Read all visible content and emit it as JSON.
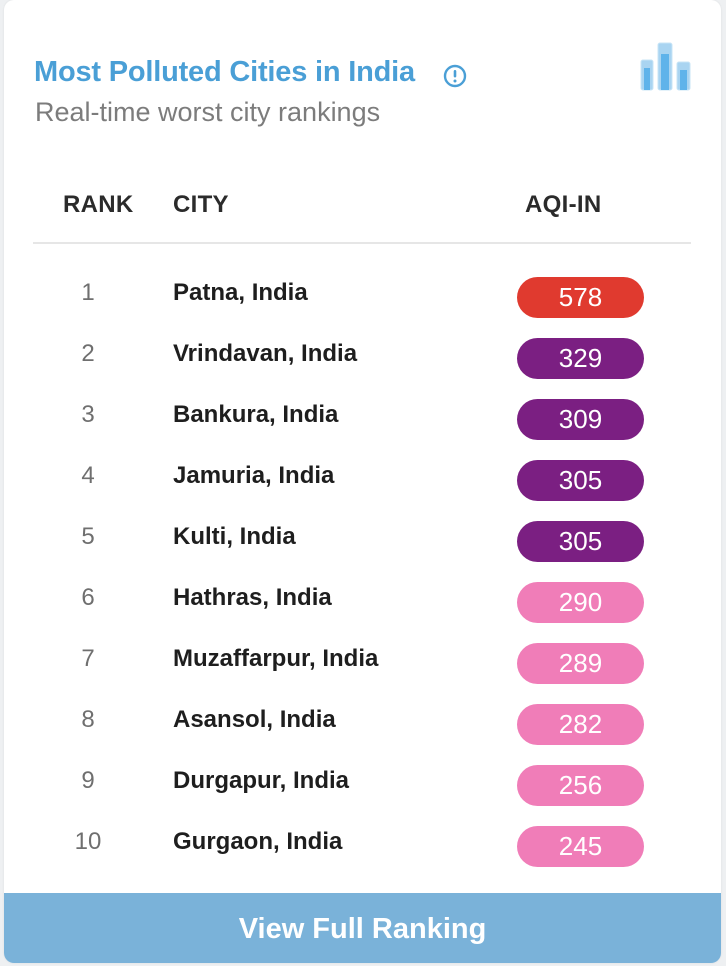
{
  "widget": {
    "title": "Most Polluted Cities in India",
    "subtitle": "Real-time worst city rankings",
    "info_icon": "info-circle-icon",
    "chart_icon": "bar-chart-icon",
    "accent_color": "#4a9fd6"
  },
  "table": {
    "headers": {
      "rank": "RANK",
      "city": "CITY",
      "aqi": "AQI-IN"
    },
    "rows": [
      {
        "rank": "1",
        "city": "Patna, India",
        "aqi": "578",
        "color": "#e03a2f"
      },
      {
        "rank": "2",
        "city": "Vrindavan, India",
        "aqi": "329",
        "color": "#7b1f82"
      },
      {
        "rank": "3",
        "city": "Bankura, India",
        "aqi": "309",
        "color": "#7b1f82"
      },
      {
        "rank": "4",
        "city": "Jamuria, India",
        "aqi": "305",
        "color": "#7b1f82"
      },
      {
        "rank": "5",
        "city": "Kulti, India",
        "aqi": "305",
        "color": "#7b1f82"
      },
      {
        "rank": "6",
        "city": "Hathras, India",
        "aqi": "290",
        "color": "#f07db8"
      },
      {
        "rank": "7",
        "city": "Muzaffarpur, India",
        "aqi": "289",
        "color": "#f07db8"
      },
      {
        "rank": "8",
        "city": "Asansol, India",
        "aqi": "282",
        "color": "#f07db8"
      },
      {
        "rank": "9",
        "city": "Durgapur, India",
        "aqi": "256",
        "color": "#f07db8"
      },
      {
        "rank": "10",
        "city": "Gurgaon, India",
        "aqi": "245",
        "color": "#f07db8"
      }
    ]
  },
  "footer": {
    "button_label": "View Full Ranking",
    "color": "#7ab2d9"
  }
}
